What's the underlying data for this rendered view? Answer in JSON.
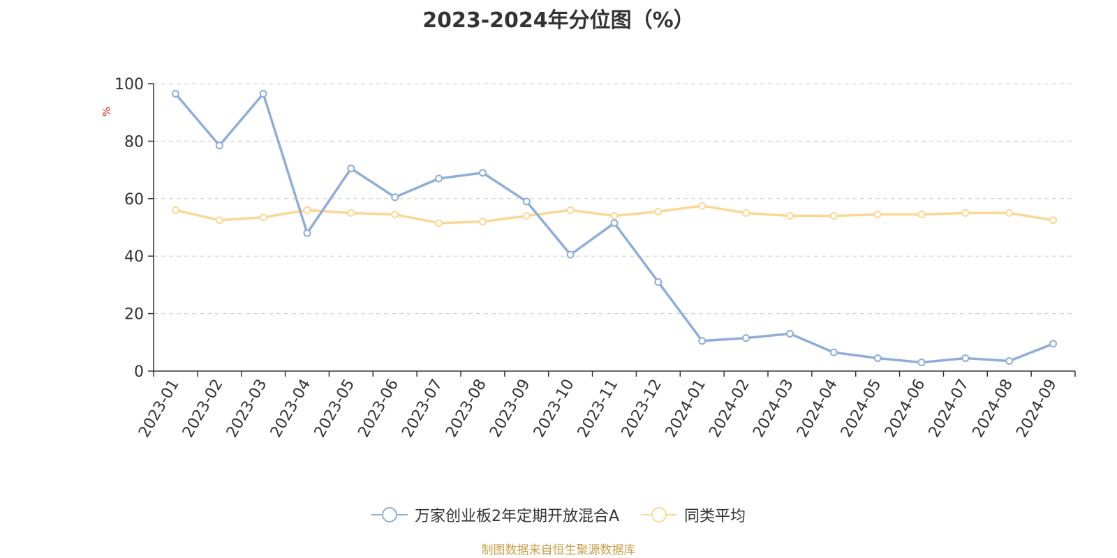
{
  "chart_data": {
    "type": "line",
    "title": "2023-2024年分位图（%）",
    "ylabel": "%",
    "xlabel": "",
    "ylim": [
      0,
      100
    ],
    "yticks": [
      0,
      20,
      40,
      60,
      80,
      100
    ],
    "grid": true,
    "legend_position": "bottom",
    "categories": [
      "2023-01",
      "2023-02",
      "2023-03",
      "2023-04",
      "2023-05",
      "2023-06",
      "2023-07",
      "2023-08",
      "2023-09",
      "2023-10",
      "2023-11",
      "2023-12",
      "2024-01",
      "2024-02",
      "2024-03",
      "2024-04",
      "2024-05",
      "2024-06",
      "2024-07",
      "2024-08",
      "2024-09"
    ],
    "series": [
      {
        "name": "万家创业板2年定期开放混合A",
        "color": "#8eadd8",
        "values": [
          96.5,
          78.5,
          96.5,
          48,
          70.5,
          60.5,
          67,
          69,
          59,
          40.5,
          51.5,
          31,
          10.5,
          11.5,
          13,
          6.5,
          4.5,
          3,
          4.5,
          3.5,
          9.5
        ]
      },
      {
        "name": "同类平均",
        "color": "#fcd794",
        "values": [
          56,
          52.5,
          53.5,
          56,
          55,
          54.5,
          51.5,
          52,
          54,
          56,
          54,
          55.5,
          57.5,
          55,
          54,
          54,
          54.5,
          54.5,
          55,
          55,
          52.5
        ]
      }
    ]
  },
  "source_text": "制图数据来自恒生聚源数据库"
}
